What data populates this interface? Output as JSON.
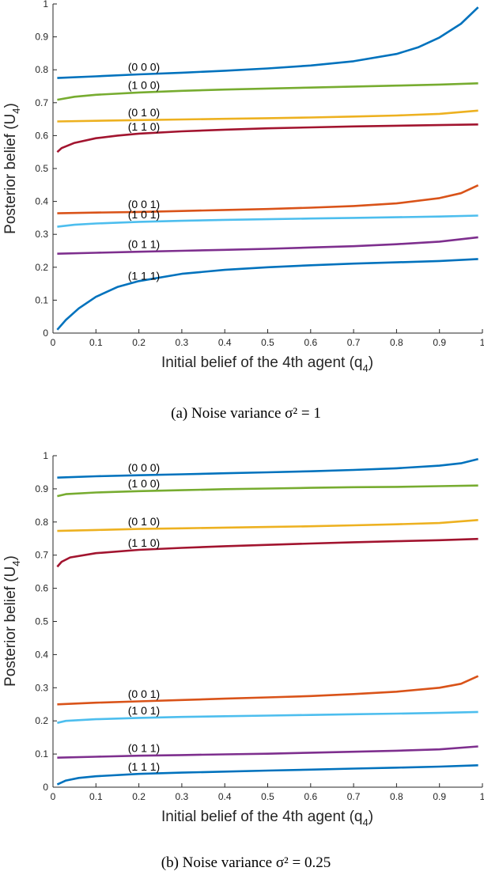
{
  "colors": {
    "blue": "#0072BD",
    "green": "#77AC30",
    "yellow": "#EDB120",
    "darkred": "#A2142F",
    "orange": "#D95319",
    "lightblue": "#4DBEEE",
    "purple": "#7E2F8E"
  },
  "chart_data": [
    {
      "type": "line",
      "caption": "(a) Noise variance σ² = 1",
      "xlabel": "Initial belief of the 4th agent (q",
      "xlabel_sub": "4",
      "xlabel_end": ")",
      "ylabel": "Posterior belief (U",
      "ylabel_sub": "4",
      "ylabel_end": ")",
      "xlim": [
        0,
        1
      ],
      "ylim": [
        0,
        1
      ],
      "xticks": [
        "0",
        "0.1",
        "0.2",
        "0.3",
        "0.4",
        "0.5",
        "0.6",
        "0.7",
        "0.8",
        "0.9",
        "1"
      ],
      "yticks": [
        "0",
        "0.1",
        "0.2",
        "0.3",
        "0.4",
        "0.5",
        "0.6",
        "0.7",
        "0.8",
        "0.9",
        "1"
      ],
      "series": [
        {
          "name": "(0  0  0)",
          "color": "blue",
          "label_x": 0.18,
          "points": [
            [
              0.01,
              0.775
            ],
            [
              0.1,
              0.78
            ],
            [
              0.2,
              0.786
            ],
            [
              0.3,
              0.791
            ],
            [
              0.4,
              0.797
            ],
            [
              0.5,
              0.804
            ],
            [
              0.6,
              0.813
            ],
            [
              0.7,
              0.826
            ],
            [
              0.8,
              0.848
            ],
            [
              0.85,
              0.868
            ],
            [
              0.9,
              0.898
            ],
            [
              0.95,
              0.94
            ],
            [
              0.99,
              0.99
            ]
          ]
        },
        {
          "name": "(1  0  0)",
          "color": "green",
          "label_x": 0.18,
          "points": [
            [
              0.01,
              0.709
            ],
            [
              0.05,
              0.718
            ],
            [
              0.1,
              0.724
            ],
            [
              0.2,
              0.731
            ],
            [
              0.3,
              0.736
            ],
            [
              0.4,
              0.74
            ],
            [
              0.5,
              0.743
            ],
            [
              0.6,
              0.746
            ],
            [
              0.7,
              0.749
            ],
            [
              0.8,
              0.752
            ],
            [
              0.9,
              0.755
            ],
            [
              0.99,
              0.759
            ]
          ]
        },
        {
          "name": "(0  1  0)",
          "color": "yellow",
          "label_x": 0.18,
          "points": [
            [
              0.01,
              0.643
            ],
            [
              0.1,
              0.645
            ],
            [
              0.2,
              0.647
            ],
            [
              0.3,
              0.649
            ],
            [
              0.4,
              0.651
            ],
            [
              0.5,
              0.653
            ],
            [
              0.6,
              0.655
            ],
            [
              0.7,
              0.658
            ],
            [
              0.8,
              0.661
            ],
            [
              0.9,
              0.666
            ],
            [
              0.99,
              0.676
            ]
          ]
        },
        {
          "name": "(1  1  0)",
          "color": "darkred",
          "label_x": 0.18,
          "points": [
            [
              0.01,
              0.55
            ],
            [
              0.02,
              0.562
            ],
            [
              0.05,
              0.578
            ],
            [
              0.1,
              0.592
            ],
            [
              0.15,
              0.6
            ],
            [
              0.2,
              0.606
            ],
            [
              0.3,
              0.613
            ],
            [
              0.4,
              0.618
            ],
            [
              0.5,
              0.622
            ],
            [
              0.6,
              0.625
            ],
            [
              0.7,
              0.628
            ],
            [
              0.8,
              0.63
            ],
            [
              0.9,
              0.632
            ],
            [
              0.99,
              0.634
            ]
          ]
        },
        {
          "name": "(0  0  1)",
          "color": "orange",
          "label_x": 0.18,
          "points": [
            [
              0.01,
              0.364
            ],
            [
              0.1,
              0.366
            ],
            [
              0.2,
              0.368
            ],
            [
              0.3,
              0.371
            ],
            [
              0.4,
              0.374
            ],
            [
              0.5,
              0.377
            ],
            [
              0.6,
              0.381
            ],
            [
              0.7,
              0.386
            ],
            [
              0.8,
              0.394
            ],
            [
              0.9,
              0.41
            ],
            [
              0.95,
              0.425
            ],
            [
              0.99,
              0.449
            ]
          ]
        },
        {
          "name": "(1  0  1)",
          "color": "lightblue",
          "label_x": 0.18,
          "points": [
            [
              0.01,
              0.323
            ],
            [
              0.05,
              0.329
            ],
            [
              0.1,
              0.333
            ],
            [
              0.2,
              0.338
            ],
            [
              0.3,
              0.341
            ],
            [
              0.4,
              0.344
            ],
            [
              0.5,
              0.346
            ],
            [
              0.6,
              0.348
            ],
            [
              0.7,
              0.35
            ],
            [
              0.8,
              0.352
            ],
            [
              0.9,
              0.354
            ],
            [
              0.99,
              0.357
            ]
          ]
        },
        {
          "name": "(0  1  1)",
          "color": "purple",
          "label_x": 0.18,
          "points": [
            [
              0.01,
              0.241
            ],
            [
              0.1,
              0.244
            ],
            [
              0.2,
              0.247
            ],
            [
              0.3,
              0.25
            ],
            [
              0.4,
              0.253
            ],
            [
              0.5,
              0.256
            ],
            [
              0.6,
              0.26
            ],
            [
              0.7,
              0.264
            ],
            [
              0.8,
              0.27
            ],
            [
              0.9,
              0.278
            ],
            [
              0.99,
              0.291
            ]
          ]
        },
        {
          "name": "(1  1  1)",
          "color": "blue",
          "label_x": 0.18,
          "points": [
            [
              0.01,
              0.01
            ],
            [
              0.03,
              0.04
            ],
            [
              0.06,
              0.075
            ],
            [
              0.1,
              0.11
            ],
            [
              0.15,
              0.14
            ],
            [
              0.2,
              0.158
            ],
            [
              0.3,
              0.18
            ],
            [
              0.4,
              0.192
            ],
            [
              0.5,
              0.2
            ],
            [
              0.6,
              0.206
            ],
            [
              0.7,
              0.211
            ],
            [
              0.8,
              0.215
            ],
            [
              0.9,
              0.219
            ],
            [
              0.99,
              0.225
            ]
          ]
        }
      ]
    },
    {
      "type": "line",
      "caption": "(b) Noise variance σ² = 0.25",
      "xlabel": "Initial belief of the 4th agent (q",
      "xlabel_sub": "4",
      "xlabel_end": ")",
      "ylabel": "Posterior belief (U",
      "ylabel_sub": "4",
      "ylabel_end": ")",
      "xlim": [
        0,
        1
      ],
      "ylim": [
        0,
        1
      ],
      "xticks": [
        "0",
        "0.1",
        "0.2",
        "0.3",
        "0.4",
        "0.5",
        "0.6",
        "0.7",
        "0.8",
        "0.9",
        "1"
      ],
      "yticks": [
        "0",
        "0.1",
        "0.2",
        "0.3",
        "0.4",
        "0.5",
        "0.6",
        "0.7",
        "0.8",
        "0.9",
        "1"
      ],
      "series": [
        {
          "name": "(0  0  0)",
          "color": "blue",
          "label_x": 0.18,
          "points": [
            [
              0.01,
              0.934
            ],
            [
              0.1,
              0.938
            ],
            [
              0.2,
              0.941
            ],
            [
              0.3,
              0.944
            ],
            [
              0.4,
              0.947
            ],
            [
              0.5,
              0.95
            ],
            [
              0.6,
              0.953
            ],
            [
              0.7,
              0.957
            ],
            [
              0.8,
              0.962
            ],
            [
              0.9,
              0.97
            ],
            [
              0.95,
              0.977
            ],
            [
              0.99,
              0.99
            ]
          ]
        },
        {
          "name": "(1  0  0)",
          "color": "green",
          "label_x": 0.18,
          "points": [
            [
              0.01,
              0.878
            ],
            [
              0.03,
              0.884
            ],
            [
              0.1,
              0.889
            ],
            [
              0.2,
              0.893
            ],
            [
              0.3,
              0.896
            ],
            [
              0.4,
              0.899
            ],
            [
              0.5,
              0.901
            ],
            [
              0.6,
              0.903
            ],
            [
              0.7,
              0.905
            ],
            [
              0.8,
              0.906
            ],
            [
              0.9,
              0.908
            ],
            [
              0.99,
              0.91
            ]
          ]
        },
        {
          "name": "(0  1  0)",
          "color": "yellow",
          "label_x": 0.18,
          "points": [
            [
              0.01,
              0.773
            ],
            [
              0.1,
              0.776
            ],
            [
              0.2,
              0.779
            ],
            [
              0.3,
              0.781
            ],
            [
              0.4,
              0.783
            ],
            [
              0.5,
              0.785
            ],
            [
              0.6,
              0.787
            ],
            [
              0.7,
              0.79
            ],
            [
              0.8,
              0.793
            ],
            [
              0.9,
              0.797
            ],
            [
              0.99,
              0.806
            ]
          ]
        },
        {
          "name": "(1  1  0)",
          "color": "darkred",
          "label_x": 0.18,
          "points": [
            [
              0.01,
              0.665
            ],
            [
              0.02,
              0.68
            ],
            [
              0.04,
              0.693
            ],
            [
              0.1,
              0.706
            ],
            [
              0.2,
              0.716
            ],
            [
              0.3,
              0.722
            ],
            [
              0.4,
              0.727
            ],
            [
              0.5,
              0.731
            ],
            [
              0.6,
              0.735
            ],
            [
              0.7,
              0.739
            ],
            [
              0.8,
              0.742
            ],
            [
              0.9,
              0.745
            ],
            [
              0.99,
              0.749
            ]
          ]
        },
        {
          "name": "(0  0  1)",
          "color": "orange",
          "label_x": 0.18,
          "points": [
            [
              0.01,
              0.25
            ],
            [
              0.1,
              0.255
            ],
            [
              0.2,
              0.259
            ],
            [
              0.3,
              0.263
            ],
            [
              0.4,
              0.267
            ],
            [
              0.5,
              0.271
            ],
            [
              0.6,
              0.275
            ],
            [
              0.7,
              0.281
            ],
            [
              0.8,
              0.288
            ],
            [
              0.9,
              0.3
            ],
            [
              0.95,
              0.312
            ],
            [
              0.99,
              0.335
            ]
          ]
        },
        {
          "name": "(1  0  1)",
          "color": "lightblue",
          "label_x": 0.18,
          "points": [
            [
              0.01,
              0.194
            ],
            [
              0.03,
              0.2
            ],
            [
              0.1,
              0.205
            ],
            [
              0.2,
              0.209
            ],
            [
              0.3,
              0.212
            ],
            [
              0.4,
              0.214
            ],
            [
              0.5,
              0.216
            ],
            [
              0.6,
              0.218
            ],
            [
              0.7,
              0.22
            ],
            [
              0.8,
              0.222
            ],
            [
              0.9,
              0.224
            ],
            [
              0.99,
              0.227
            ]
          ]
        },
        {
          "name": "(0  1  1)",
          "color": "purple",
          "label_x": 0.18,
          "points": [
            [
              0.01,
              0.089
            ],
            [
              0.1,
              0.092
            ],
            [
              0.2,
              0.095
            ],
            [
              0.3,
              0.097
            ],
            [
              0.4,
              0.099
            ],
            [
              0.5,
              0.101
            ],
            [
              0.6,
              0.104
            ],
            [
              0.7,
              0.107
            ],
            [
              0.8,
              0.11
            ],
            [
              0.9,
              0.114
            ],
            [
              0.99,
              0.123
            ]
          ]
        },
        {
          "name": "(1  1  1)",
          "color": "blue",
          "label_x": 0.18,
          "points": [
            [
              0.01,
              0.008
            ],
            [
              0.03,
              0.02
            ],
            [
              0.06,
              0.028
            ],
            [
              0.1,
              0.033
            ],
            [
              0.2,
              0.04
            ],
            [
              0.3,
              0.044
            ],
            [
              0.4,
              0.047
            ],
            [
              0.5,
              0.05
            ],
            [
              0.6,
              0.053
            ],
            [
              0.7,
              0.056
            ],
            [
              0.8,
              0.059
            ],
            [
              0.9,
              0.062
            ],
            [
              0.99,
              0.066
            ]
          ]
        }
      ]
    }
  ]
}
